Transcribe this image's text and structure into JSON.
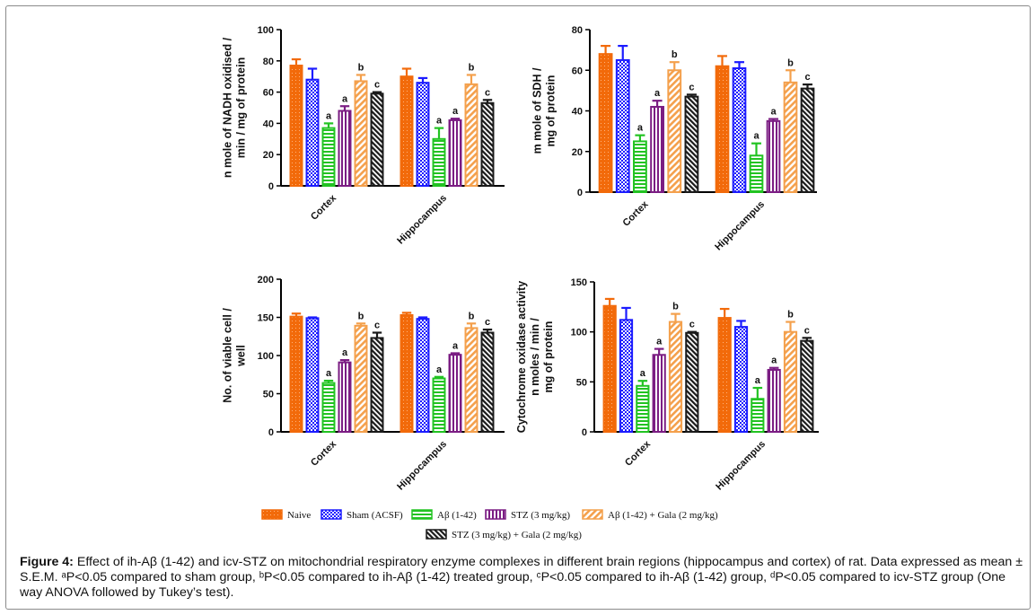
{
  "figure": {
    "legend": [
      {
        "label": "Naive",
        "color": "#f26a0a",
        "pattern": "dots"
      },
      {
        "label": "Sham (ACSF)",
        "color": "#1c1cff",
        "pattern": "checker"
      },
      {
        "label": "Aβ (1-42)",
        "color": "#22c322",
        "pattern": "hstripes"
      },
      {
        "label": "STZ (3 mg/kg)",
        "color": "#7b1d83",
        "pattern": "vstripes"
      },
      {
        "label": "Aβ (1-42) + Gala (2 mg/kg)",
        "color": "#f4a04c",
        "pattern": "diag"
      },
      {
        "label": "STZ (3 mg/kg) + Gala (2 mg/kg)",
        "color": "#1a1a1a",
        "pattern": "diagdark"
      }
    ],
    "caption": {
      "label": "Figure 4:",
      "text": "Effect of ih-Aβ (1-42) and icv-STZ on mitochondrial respiratory enzyme complexes in different brain regions (hippocampus and cortex) of rat. Data expressed as mean ± S.E.M. ᵃP<0.05 compared to sham group, ᵇP<0.05 compared to ih-Aβ (1-42) treated group, ᶜP<0.05 compared to ih-Aβ (1-42) group, ᵈP<0.05 compared to icv-STZ group (One way ANOVA followed by Tukey’s test)."
    }
  },
  "chart_data": [
    {
      "type": "bar",
      "ylabel": [
        "n mole of NADH oxidised /",
        "min / mg of protein"
      ],
      "ylim": [
        0,
        100
      ],
      "yticks": [
        0,
        20,
        40,
        60,
        80,
        100
      ],
      "categories": [
        "Cortex",
        "Hippocampus"
      ],
      "series": [
        {
          "name": "Naive",
          "values": [
            77,
            70
          ],
          "errors": [
            4,
            5
          ],
          "sig": [
            "",
            ""
          ]
        },
        {
          "name": "Sham (ACSF)",
          "values": [
            68,
            66
          ],
          "errors": [
            7,
            3
          ],
          "sig": [
            "",
            ""
          ]
        },
        {
          "name": "Aβ (1-42)",
          "values": [
            37,
            30
          ],
          "errors": [
            3,
            7
          ],
          "sig": [
            "a",
            "a"
          ]
        },
        {
          "name": "STZ (3 mg/kg)",
          "values": [
            48,
            42
          ],
          "errors": [
            3,
            1
          ],
          "sig": [
            "a",
            "a"
          ]
        },
        {
          "name": "Aβ (1-42) + Gala (2 mg/kg)",
          "values": [
            67,
            65
          ],
          "errors": [
            4,
            6
          ],
          "sig": [
            "b",
            "b"
          ]
        },
        {
          "name": "STZ (3 mg/kg) + Gala (2 mg/kg)",
          "values": [
            59,
            53
          ],
          "errors": [
            1,
            2
          ],
          "sig": [
            "c",
            "c"
          ]
        }
      ]
    },
    {
      "type": "bar",
      "ylabel": [
        "m mole of SDH /",
        "mg of protein"
      ],
      "ylim": [
        0,
        80
      ],
      "yticks": [
        0,
        20,
        40,
        60,
        80
      ],
      "categories": [
        "Cortex",
        "Hippocampus"
      ],
      "series": [
        {
          "name": "Naive",
          "values": [
            68,
            62
          ],
          "errors": [
            4,
            5
          ],
          "sig": [
            "",
            ""
          ]
        },
        {
          "name": "Sham (ACSF)",
          "values": [
            65,
            61
          ],
          "errors": [
            7,
            3
          ],
          "sig": [
            "",
            ""
          ]
        },
        {
          "name": "Aβ (1-42)",
          "values": [
            25,
            18
          ],
          "errors": [
            3,
            6
          ],
          "sig": [
            "a",
            "a"
          ]
        },
        {
          "name": "STZ (3 mg/kg)",
          "values": [
            42,
            35
          ],
          "errors": [
            3,
            1
          ],
          "sig": [
            "a",
            "a"
          ]
        },
        {
          "name": "Aβ (1-42) + Gala (2 mg/kg)",
          "values": [
            60,
            54
          ],
          "errors": [
            4,
            6
          ],
          "sig": [
            "b",
            "b"
          ]
        },
        {
          "name": "STZ (3 mg/kg) + Gala (2 mg/kg)",
          "values": [
            47,
            51
          ],
          "errors": [
            1,
            2
          ],
          "sig": [
            "c",
            "c"
          ]
        }
      ]
    },
    {
      "type": "bar",
      "ylabel": [
        "No. of viable cell /",
        "well"
      ],
      "ylim": [
        0,
        200
      ],
      "yticks": [
        0,
        50,
        100,
        150,
        200
      ],
      "categories": [
        "Cortex",
        "Hippocampus"
      ],
      "series": [
        {
          "name": "Naive",
          "values": [
            151,
            153
          ],
          "errors": [
            4,
            3
          ],
          "sig": [
            "",
            ""
          ]
        },
        {
          "name": "Sham (ACSF)",
          "values": [
            149,
            148
          ],
          "errors": [
            1,
            2
          ],
          "sig": [
            "",
            ""
          ]
        },
        {
          "name": "Aβ (1-42)",
          "values": [
            64,
            70
          ],
          "errors": [
            3,
            2
          ],
          "sig": [
            "a",
            "a"
          ]
        },
        {
          "name": "STZ (3 mg/kg)",
          "values": [
            91,
            101
          ],
          "errors": [
            3,
            2
          ],
          "sig": [
            "a",
            "a"
          ]
        },
        {
          "name": "Aβ (1-42) + Gala (2 mg/kg)",
          "values": [
            139,
            136
          ],
          "errors": [
            3,
            6
          ],
          "sig": [
            "b",
            "b"
          ]
        },
        {
          "name": "STZ (3 mg/kg) + Gala (2 mg/kg)",
          "values": [
            123,
            130
          ],
          "errors": [
            7,
            4
          ],
          "sig": [
            "c",
            "c"
          ]
        }
      ]
    },
    {
      "type": "bar",
      "ylabel": [
        "Cytochrome oxidase activity",
        "n moles / min /",
        "mg of protein"
      ],
      "ylim": [
        0,
        150
      ],
      "yticks": [
        0,
        50,
        100,
        150
      ],
      "categories": [
        "Cortex",
        "Hippocampus"
      ],
      "series": [
        {
          "name": "Naive",
          "values": [
            126,
            114
          ],
          "errors": [
            7,
            9
          ],
          "sig": [
            "",
            ""
          ]
        },
        {
          "name": "Sham (ACSF)",
          "values": [
            112,
            105
          ],
          "errors": [
            12,
            6
          ],
          "sig": [
            "",
            ""
          ]
        },
        {
          "name": "Aβ (1-42)",
          "values": [
            46,
            33
          ],
          "errors": [
            5,
            11
          ],
          "sig": [
            "a",
            "a"
          ]
        },
        {
          "name": "STZ (3 mg/kg)",
          "values": [
            77,
            62
          ],
          "errors": [
            6,
            2
          ],
          "sig": [
            "a",
            "a"
          ]
        },
        {
          "name": "Aβ (1-42) + Gala (2 mg/kg)",
          "values": [
            110,
            100
          ],
          "errors": [
            8,
            10
          ],
          "sig": [
            "b",
            "b"
          ]
        },
        {
          "name": "STZ (3 mg/kg) + Gala (2 mg/kg)",
          "values": [
            99,
            91
          ],
          "errors": [
            1,
            3
          ],
          "sig": [
            "c",
            "c"
          ]
        }
      ]
    }
  ]
}
